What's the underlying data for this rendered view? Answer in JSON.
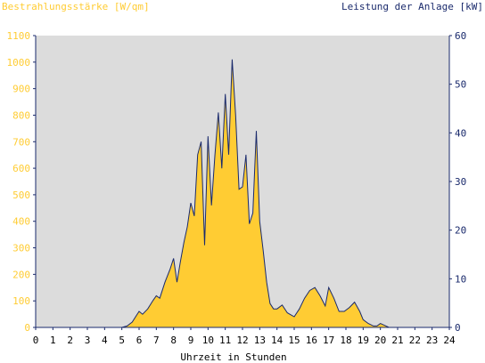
{
  "chart_data": {
    "type": "area",
    "title_left": "Bestrahlungsstärke [W/qm]",
    "title_right": "Leistung der Anlage [kW]",
    "xlabel": "Uhrzeit in Stunden",
    "xlim": [
      0,
      24
    ],
    "x_ticks": [
      "0",
      "1",
      "2",
      "3",
      "4",
      "5",
      "6",
      "7",
      "8",
      "9",
      "10",
      "11",
      "12",
      "13",
      "14",
      "15",
      "16",
      "17",
      "18",
      "19",
      "20",
      "21",
      "22",
      "23",
      "24"
    ],
    "y_left": {
      "lim": [
        0,
        1100
      ],
      "ticks": [
        "0",
        "100",
        "200",
        "300",
        "400",
        "500",
        "600",
        "700",
        "800",
        "900",
        "1000",
        "1100"
      ]
    },
    "y_right": {
      "lim": [
        0,
        60
      ],
      "ticks": [
        "0",
        "10",
        "20",
        "30",
        "40",
        "50",
        "60"
      ]
    },
    "grid": false,
    "colors": {
      "irradiance": "#ffcc33",
      "power": "#1a2a6c",
      "plot_bg": "#dcdcdc",
      "axis": "#1a2a6c"
    },
    "series": [
      {
        "name": "Bestrahlungsstärke [W/qm]",
        "axis": "left",
        "x": [
          0,
          5.0,
          5.3,
          5.6,
          5.8,
          6.0,
          6.2,
          6.5,
          6.8,
          7.0,
          7.2,
          7.5,
          7.8,
          8.0,
          8.2,
          8.4,
          8.6,
          8.8,
          9.0,
          9.2,
          9.4,
          9.6,
          9.8,
          10.0,
          10.2,
          10.4,
          10.6,
          10.8,
          11.0,
          11.2,
          11.4,
          11.6,
          11.8,
          12.0,
          12.2,
          12.4,
          12.6,
          12.8,
          13.0,
          13.2,
          13.4,
          13.6,
          13.8,
          14.0,
          14.3,
          14.6,
          15.0,
          15.3,
          15.6,
          15.9,
          16.2,
          16.5,
          16.8,
          17.0,
          17.3,
          17.6,
          17.9,
          18.2,
          18.5,
          18.8,
          19.0,
          19.3,
          19.6,
          19.8,
          20.0,
          20.2,
          20.5,
          21,
          24
        ],
        "values": [
          0,
          0,
          5,
          20,
          40,
          60,
          50,
          70,
          100,
          120,
          110,
          170,
          220,
          260,
          170,
          250,
          320,
          380,
          470,
          420,
          650,
          700,
          310,
          720,
          460,
          650,
          810,
          600,
          880,
          650,
          1010,
          800,
          520,
          530,
          650,
          390,
          430,
          740,
          400,
          290,
          170,
          90,
          70,
          70,
          85,
          55,
          40,
          70,
          110,
          140,
          150,
          120,
          80,
          150,
          110,
          60,
          60,
          75,
          95,
          60,
          30,
          15,
          5,
          5,
          15,
          10,
          0,
          0,
          0
        ],
        "unit": "W/qm"
      },
      {
        "name": "Leistung der Anlage [kW]",
        "axis": "right",
        "x": [
          0,
          5.0,
          5.3,
          5.6,
          5.8,
          6.0,
          6.2,
          6.5,
          6.8,
          7.0,
          7.2,
          7.5,
          7.8,
          8.0,
          8.2,
          8.4,
          8.6,
          8.8,
          9.0,
          9.2,
          9.4,
          9.6,
          9.8,
          10.0,
          10.2,
          10.4,
          10.6,
          10.8,
          11.0,
          11.2,
          11.4,
          11.6,
          11.8,
          12.0,
          12.2,
          12.4,
          12.6,
          12.8,
          13.0,
          13.2,
          13.4,
          13.6,
          13.8,
          14.0,
          14.3,
          14.6,
          15.0,
          15.3,
          15.6,
          15.9,
          16.2,
          16.5,
          16.8,
          17.0,
          17.3,
          17.6,
          17.9,
          18.2,
          18.5,
          18.8,
          19.0,
          19.3,
          19.6,
          19.8,
          20.0,
          20.2,
          20.5,
          21,
          24
        ],
        "values": [
          0,
          0,
          0.3,
          1.1,
          2.2,
          3.3,
          2.7,
          3.8,
          5.5,
          6.5,
          6.0,
          9.3,
          12.0,
          14.2,
          9.3,
          13.6,
          17.5,
          20.7,
          25.6,
          22.9,
          35.5,
          38.2,
          16.9,
          39.3,
          25.1,
          35.5,
          44.2,
          32.7,
          48.0,
          35.5,
          55.1,
          43.6,
          28.4,
          28.9,
          35.5,
          21.3,
          23.5,
          40.4,
          21.8,
          15.8,
          9.3,
          4.9,
          3.8,
          3.8,
          4.6,
          3.0,
          2.2,
          3.8,
          6.0,
          7.6,
          8.2,
          6.5,
          4.4,
          8.2,
          6.0,
          3.3,
          3.3,
          4.1,
          5.2,
          3.3,
          1.6,
          0.8,
          0.3,
          0.3,
          0.8,
          0.5,
          0,
          0,
          0
        ],
        "unit": "kW"
      }
    ]
  }
}
